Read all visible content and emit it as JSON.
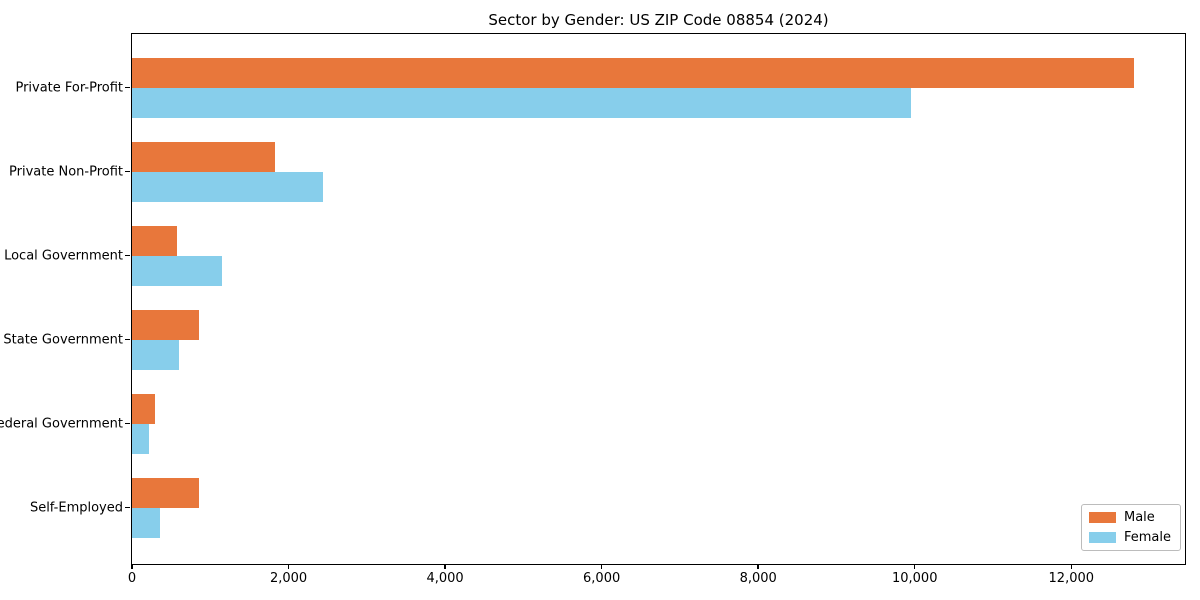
{
  "figure": {
    "background": "#ffffff",
    "text_color": "#000000"
  },
  "chart_data": {
    "type": "bar",
    "orientation": "horizontal",
    "title": "Sector by Gender: US ZIP Code 08854 (2024)",
    "categories": [
      "Private For-Profit",
      "Private Non-Profit",
      "Local Government",
      "State Government",
      "Federal Government",
      "Self-Employed"
    ],
    "series": [
      {
        "name": "Male",
        "color": "#e8773b",
        "values": [
          12800,
          1830,
          570,
          860,
          300,
          850
        ]
      },
      {
        "name": "Female",
        "color": "#87ceeb",
        "values": [
          9950,
          2440,
          1150,
          600,
          220,
          360
        ]
      }
    ],
    "xlabel": "",
    "ylabel": "",
    "xlim": [
      0,
      13440
    ],
    "xticks": [
      {
        "value": 0,
        "label": "0"
      },
      {
        "value": 2000,
        "label": "2,000"
      },
      {
        "value": 4000,
        "label": "4,000"
      },
      {
        "value": 6000,
        "label": "6,000"
      },
      {
        "value": 8000,
        "label": "8,000"
      },
      {
        "value": 10000,
        "label": "10,000"
      },
      {
        "value": 12000,
        "label": "12,000"
      }
    ],
    "grid": false,
    "legend": {
      "position": "lower right"
    }
  }
}
